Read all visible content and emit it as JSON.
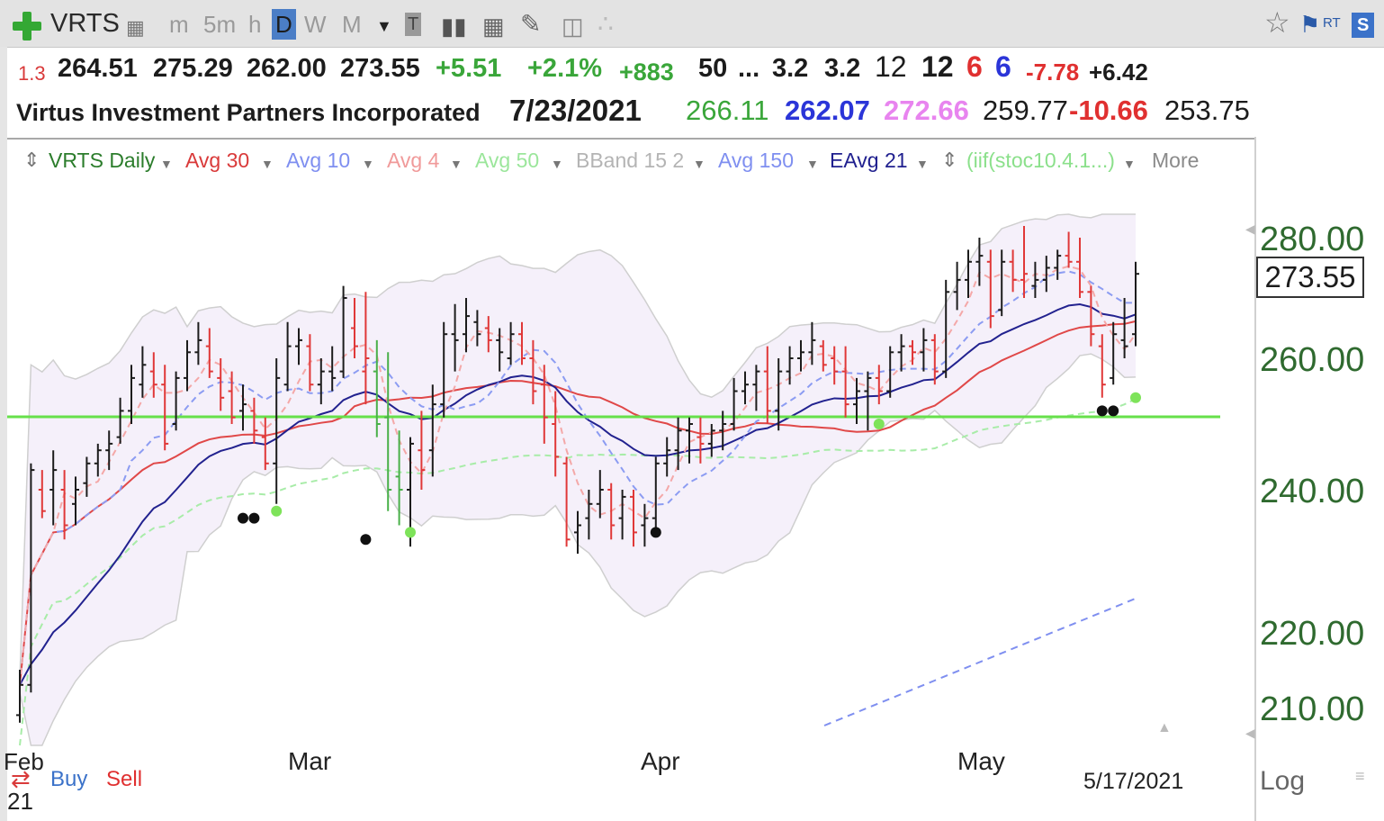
{
  "toolbar": {
    "symbol": "VRTS",
    "timeframes": [
      "m",
      "5m",
      "h",
      "D",
      "W",
      "M"
    ],
    "active_timeframe": "D",
    "rt_label": "RT",
    "s_label": "S"
  },
  "quote_row": {
    "small_left": "1.3",
    "open": "264.51",
    "high": "275.29",
    "low": "262.00",
    "close": "273.55",
    "change": "+5.51",
    "change_pct": "+2.1%",
    "vol_change": "+883",
    "v50": "50",
    "ellipsis": "...",
    "v1": "3.2",
    "v2": "3.2",
    "v3": "12",
    "v4": "12",
    "v5": "6",
    "v6": "6",
    "v7": "-7.78",
    "v8": "+6.42"
  },
  "info_row": {
    "company": "Virtus Investment Partners Incorporated",
    "date": "7/23/2021",
    "p1": "266.11",
    "p2": "262.07",
    "p3": "272.66",
    "p4": "259.77",
    "p5": "-10.66",
    "p6": "253.75"
  },
  "legend": {
    "items": [
      "VRTS Daily",
      "Avg 30",
      "Avg 10",
      "Avg 4",
      "Avg 50",
      "BBand 15 2",
      "Avg 150",
      "EAvg 21",
      "(iif(stoc10.4.1...)",
      "More"
    ],
    "colors": [
      "#2c7d2c",
      "#d93a3a",
      "#7f8ff0",
      "#f09a9a",
      "#9be69b",
      "#b4b4b4",
      "#7f8ff0",
      "#20208f",
      "#8be08b",
      "#8a8a8a"
    ]
  },
  "chart_data": {
    "type": "ohlc",
    "ylim": [
      205,
      284
    ],
    "y_ticks": [
      280.0,
      260.0,
      240.0,
      220.0,
      210.0
    ],
    "y_tick_labels": [
      "280.00",
      "260.00",
      "240.00",
      "220.00",
      "210.00"
    ],
    "last_price_label": "273.55",
    "last_price": 273.55,
    "x_month_labels": [
      "Feb",
      "Mar",
      "Apr",
      "May"
    ],
    "x_sub_label": "21",
    "cursor_date_label": "5/17/2021",
    "horizontal_line": 250,
    "bars": [
      {
        "o": 209,
        "h": 215,
        "l": 208,
        "c": 213,
        "u": true
      },
      {
        "o": 213,
        "h": 244,
        "l": 212,
        "c": 243,
        "u": true
      },
      {
        "o": 240,
        "h": 243,
        "l": 236,
        "c": 237,
        "u": false
      },
      {
        "o": 240,
        "h": 246,
        "l": 235,
        "c": 243,
        "u": true
      },
      {
        "o": 240,
        "h": 243,
        "l": 233,
        "c": 235,
        "u": false
      },
      {
        "o": 238,
        "h": 242,
        "l": 235,
        "c": 240,
        "u": true
      },
      {
        "o": 241,
        "h": 245,
        "l": 239,
        "c": 244,
        "u": true
      },
      {
        "o": 244,
        "h": 247,
        "l": 242,
        "c": 246,
        "u": true
      },
      {
        "o": 246,
        "h": 249,
        "l": 243,
        "c": 247,
        "u": true
      },
      {
        "o": 248,
        "h": 254,
        "l": 247,
        "c": 252,
        "u": true
      },
      {
        "o": 252,
        "h": 259,
        "l": 250,
        "c": 257,
        "u": true
      },
      {
        "o": 256,
        "h": 262,
        "l": 254,
        "c": 259,
        "u": true
      },
      {
        "o": 258,
        "h": 261,
        "l": 254,
        "c": 256,
        "u": false
      },
      {
        "o": 256,
        "h": 259,
        "l": 246,
        "c": 247,
        "u": false
      },
      {
        "o": 250,
        "h": 258,
        "l": 249,
        "c": 257,
        "u": true
      },
      {
        "o": 257,
        "h": 263,
        "l": 255,
        "c": 261,
        "u": true
      },
      {
        "o": 261,
        "h": 266,
        "l": 259,
        "c": 263,
        "u": true
      },
      {
        "o": 262,
        "h": 265,
        "l": 257,
        "c": 258,
        "u": false
      },
      {
        "o": 257,
        "h": 260,
        "l": 252,
        "c": 254,
        "u": false
      },
      {
        "o": 255,
        "h": 258,
        "l": 250,
        "c": 251,
        "u": false
      },
      {
        "o": 252,
        "h": 256,
        "l": 249,
        "c": 253,
        "u": true
      },
      {
        "o": 252,
        "h": 254,
        "l": 247,
        "c": 249,
        "u": false
      },
      {
        "o": 248,
        "h": 251,
        "l": 243,
        "c": 244,
        "u": false
      },
      {
        "o": 244,
        "h": 260,
        "l": 238,
        "c": 257,
        "u": true
      },
      {
        "o": 256,
        "h": 266,
        "l": 255,
        "c": 262,
        "u": true
      },
      {
        "o": 262,
        "h": 265,
        "l": 259,
        "c": 263,
        "u": true
      },
      {
        "o": 262,
        "h": 264,
        "l": 255,
        "c": 256,
        "u": false
      },
      {
        "o": 256,
        "h": 260,
        "l": 253,
        "c": 258,
        "u": true
      },
      {
        "o": 258,
        "h": 262,
        "l": 255,
        "c": 257,
        "u": true
      },
      {
        "o": 258,
        "h": 272,
        "l": 257,
        "c": 270,
        "u": true
      },
      {
        "o": 265,
        "h": 270,
        "l": 260,
        "c": 262,
        "u": false
      },
      {
        "o": 258,
        "h": 271,
        "l": 253,
        "c": 260,
        "u": false
      },
      {
        "o": 258,
        "h": 263,
        "l": 248,
        "c": 250,
        "u": false
      },
      {
        "o": 251,
        "h": 261,
        "l": 237,
        "c": 240,
        "u": false
      },
      {
        "o": 242,
        "h": 249,
        "l": 235,
        "c": 240,
        "u": false
      },
      {
        "o": 240,
        "h": 248,
        "l": 232,
        "c": 247,
        "u": true
      },
      {
        "o": 246,
        "h": 252,
        "l": 240,
        "c": 243,
        "u": false
      },
      {
        "o": 246,
        "h": 256,
        "l": 242,
        "c": 253,
        "u": true
      },
      {
        "o": 253,
        "h": 266,
        "l": 251,
        "c": 264,
        "u": true
      },
      {
        "o": 264,
        "h": 269,
        "l": 258,
        "c": 263,
        "u": true
      },
      {
        "o": 264,
        "h": 270,
        "l": 261,
        "c": 267,
        "u": true
      },
      {
        "o": 266,
        "h": 268,
        "l": 262,
        "c": 264,
        "u": true
      },
      {
        "o": 265,
        "h": 267,
        "l": 261,
        "c": 263,
        "u": false
      },
      {
        "o": 263,
        "h": 265,
        "l": 258,
        "c": 261,
        "u": true
      },
      {
        "o": 260,
        "h": 266,
        "l": 259,
        "c": 264,
        "u": true
      },
      {
        "o": 264,
        "h": 266,
        "l": 259,
        "c": 260,
        "u": false
      },
      {
        "o": 260,
        "h": 263,
        "l": 253,
        "c": 255,
        "u": false
      },
      {
        "o": 256,
        "h": 259,
        "l": 247,
        "c": 251,
        "u": false
      },
      {
        "o": 250,
        "h": 255,
        "l": 242,
        "c": 245,
        "u": false
      },
      {
        "o": 244,
        "h": 245,
        "l": 232,
        "c": 233,
        "u": false
      },
      {
        "o": 234,
        "h": 237,
        "l": 231,
        "c": 235,
        "u": true
      },
      {
        "o": 236,
        "h": 240,
        "l": 233,
        "c": 238,
        "u": true
      },
      {
        "o": 238,
        "h": 243,
        "l": 236,
        "c": 240,
        "u": true
      },
      {
        "o": 240,
        "h": 241,
        "l": 233,
        "c": 235,
        "u": false
      },
      {
        "o": 236,
        "h": 240,
        "l": 233,
        "c": 239,
        "u": true
      },
      {
        "o": 239,
        "h": 240,
        "l": 232,
        "c": 234,
        "u": false
      },
      {
        "o": 235,
        "h": 238,
        "l": 232,
        "c": 236,
        "u": true
      },
      {
        "o": 236,
        "h": 245,
        "l": 234,
        "c": 244,
        "u": true
      },
      {
        "o": 244,
        "h": 248,
        "l": 242,
        "c": 246,
        "u": true
      },
      {
        "o": 246,
        "h": 251,
        "l": 243,
        "c": 249,
        "u": true
      },
      {
        "o": 249,
        "h": 251,
        "l": 244,
        "c": 250,
        "u": true
      },
      {
        "o": 248,
        "h": 251,
        "l": 244,
        "c": 247,
        "u": false
      },
      {
        "o": 247,
        "h": 250,
        "l": 245,
        "c": 249,
        "u": true
      },
      {
        "o": 249,
        "h": 252,
        "l": 246,
        "c": 250,
        "u": true
      },
      {
        "o": 250,
        "h": 257,
        "l": 249,
        "c": 255,
        "u": true
      },
      {
        "o": 255,
        "h": 258,
        "l": 253,
        "c": 256,
        "u": true
      },
      {
        "o": 256,
        "h": 259,
        "l": 252,
        "c": 258,
        "u": true
      },
      {
        "o": 258,
        "h": 262,
        "l": 250,
        "c": 252,
        "u": false
      },
      {
        "o": 252,
        "h": 260,
        "l": 249,
        "c": 258,
        "u": true
      },
      {
        "o": 258,
        "h": 262,
        "l": 256,
        "c": 260,
        "u": true
      },
      {
        "o": 260,
        "h": 263,
        "l": 258,
        "c": 261,
        "u": true
      },
      {
        "o": 261,
        "h": 266,
        "l": 259,
        "c": 263,
        "u": true
      },
      {
        "o": 262,
        "h": 263,
        "l": 258,
        "c": 259,
        "u": false
      },
      {
        "o": 260,
        "h": 262,
        "l": 256,
        "c": 258,
        "u": false
      },
      {
        "o": 258,
        "h": 262,
        "l": 251,
        "c": 253,
        "u": false
      },
      {
        "o": 253,
        "h": 257,
        "l": 250,
        "c": 255,
        "u": true
      },
      {
        "o": 255,
        "h": 258,
        "l": 249,
        "c": 257,
        "u": true
      },
      {
        "o": 257,
        "h": 259,
        "l": 253,
        "c": 255,
        "u": false
      },
      {
        "o": 255,
        "h": 262,
        "l": 254,
        "c": 261,
        "u": true
      },
      {
        "o": 261,
        "h": 264,
        "l": 258,
        "c": 262,
        "u": true
      },
      {
        "o": 262,
        "h": 263,
        "l": 259,
        "c": 261,
        "u": false
      },
      {
        "o": 261,
        "h": 265,
        "l": 258,
        "c": 263,
        "u": true
      },
      {
        "o": 263,
        "h": 264,
        "l": 256,
        "c": 258,
        "u": false
      },
      {
        "o": 258,
        "h": 273,
        "l": 257,
        "c": 271,
        "u": true
      },
      {
        "o": 271,
        "h": 276,
        "l": 268,
        "c": 273,
        "u": true
      },
      {
        "o": 273,
        "h": 278,
        "l": 270,
        "c": 276,
        "u": true
      },
      {
        "o": 276,
        "h": 280,
        "l": 272,
        "c": 277,
        "u": true
      },
      {
        "o": 276,
        "h": 278,
        "l": 265,
        "c": 267,
        "u": false
      },
      {
        "o": 268,
        "h": 278,
        "l": 267,
        "c": 276,
        "u": true
      },
      {
        "o": 276,
        "h": 278,
        "l": 271,
        "c": 273,
        "u": false
      },
      {
        "o": 273,
        "h": 282,
        "l": 270,
        "c": 274,
        "u": false
      },
      {
        "o": 272,
        "h": 276,
        "l": 270,
        "c": 273,
        "u": true
      },
      {
        "o": 273,
        "h": 277,
        "l": 271,
        "c": 275,
        "u": true
      },
      {
        "o": 275,
        "h": 278,
        "l": 273,
        "c": 277,
        "u": true
      },
      {
        "o": 277,
        "h": 281,
        "l": 275,
        "c": 276,
        "u": false
      },
      {
        "o": 276,
        "h": 280,
        "l": 270,
        "c": 271,
        "u": false
      },
      {
        "o": 271,
        "h": 272,
        "l": 262,
        "c": 264,
        "u": false
      },
      {
        "o": 262,
        "h": 264,
        "l": 254,
        "c": 256,
        "u": false
      },
      {
        "o": 257,
        "h": 266,
        "l": 256,
        "c": 264,
        "u": true
      },
      {
        "o": 263,
        "h": 270,
        "l": 260,
        "c": 262,
        "u": true
      },
      {
        "o": 264,
        "h": 276,
        "l": 262,
        "c": 274,
        "u": true
      }
    ],
    "signal_dots": [
      {
        "i": 20,
        "v": 236,
        "color": "black"
      },
      {
        "i": 21,
        "v": 236,
        "color": "black"
      },
      {
        "i": 23,
        "v": 237,
        "color": "green"
      },
      {
        "i": 31,
        "v": 233,
        "color": "black"
      },
      {
        "i": 35,
        "v": 234,
        "color": "green"
      },
      {
        "i": 57,
        "v": 234,
        "color": "black"
      },
      {
        "i": 77,
        "v": 250,
        "color": "green"
      },
      {
        "i": 97,
        "v": 252,
        "color": "black"
      },
      {
        "i": 98,
        "v": 252,
        "color": "black"
      },
      {
        "i": 100,
        "v": 254,
        "color": "green"
      }
    ]
  }
}
